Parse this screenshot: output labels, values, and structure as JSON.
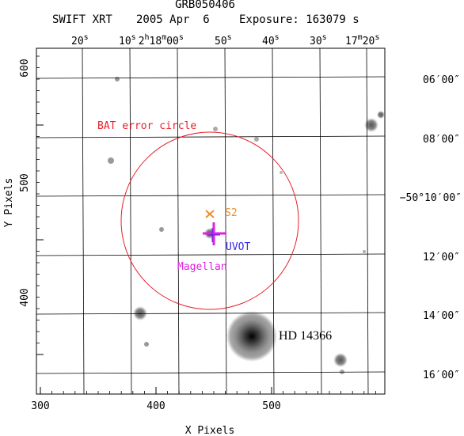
{
  "header": {
    "grb": "GRB050406",
    "telescope": "SWIFT XRT",
    "date": "2005 Apr  6",
    "exposure": "Exposure: 163079 s"
  },
  "axes": {
    "xlabel": "X Pixels",
    "ylabel": "Y Pixels",
    "x_ticks": [
      "300",
      "400",
      "500"
    ],
    "y_ticks": [
      "400",
      "500",
      "600"
    ],
    "ra_ticks": [
      {
        "main": "20",
        "sup": "s"
      },
      {
        "main": "10",
        "sup": "s"
      },
      {
        "main": "2",
        "sup": "h"
      },
      {
        "main": "18",
        "sup": "m"
      },
      {
        "main": "00",
        "sup": "s"
      },
      {
        "main": "50",
        "sup": "s"
      },
      {
        "main": "40",
        "sup": "s"
      },
      {
        "main": "30",
        "sup": "s"
      },
      {
        "main": "17",
        "sup": "m"
      },
      {
        "main": "20",
        "sup": "s"
      }
    ],
    "dec_ticks": [
      "06′00″",
      "08′00″",
      "−50°10′00″",
      "12′00″",
      "14′00″",
      "16′00″"
    ]
  },
  "annotations": {
    "bat": "BAT error circle",
    "s2": "S2",
    "uvot": "UVOT",
    "magellan": "Magellan",
    "hd": "HD 14366"
  },
  "colors": {
    "bat": "#e8202a",
    "s2": "#e8902a",
    "uvot": "#3a2ae8",
    "magellan": "#e020e0",
    "grid": "#000000"
  }
}
